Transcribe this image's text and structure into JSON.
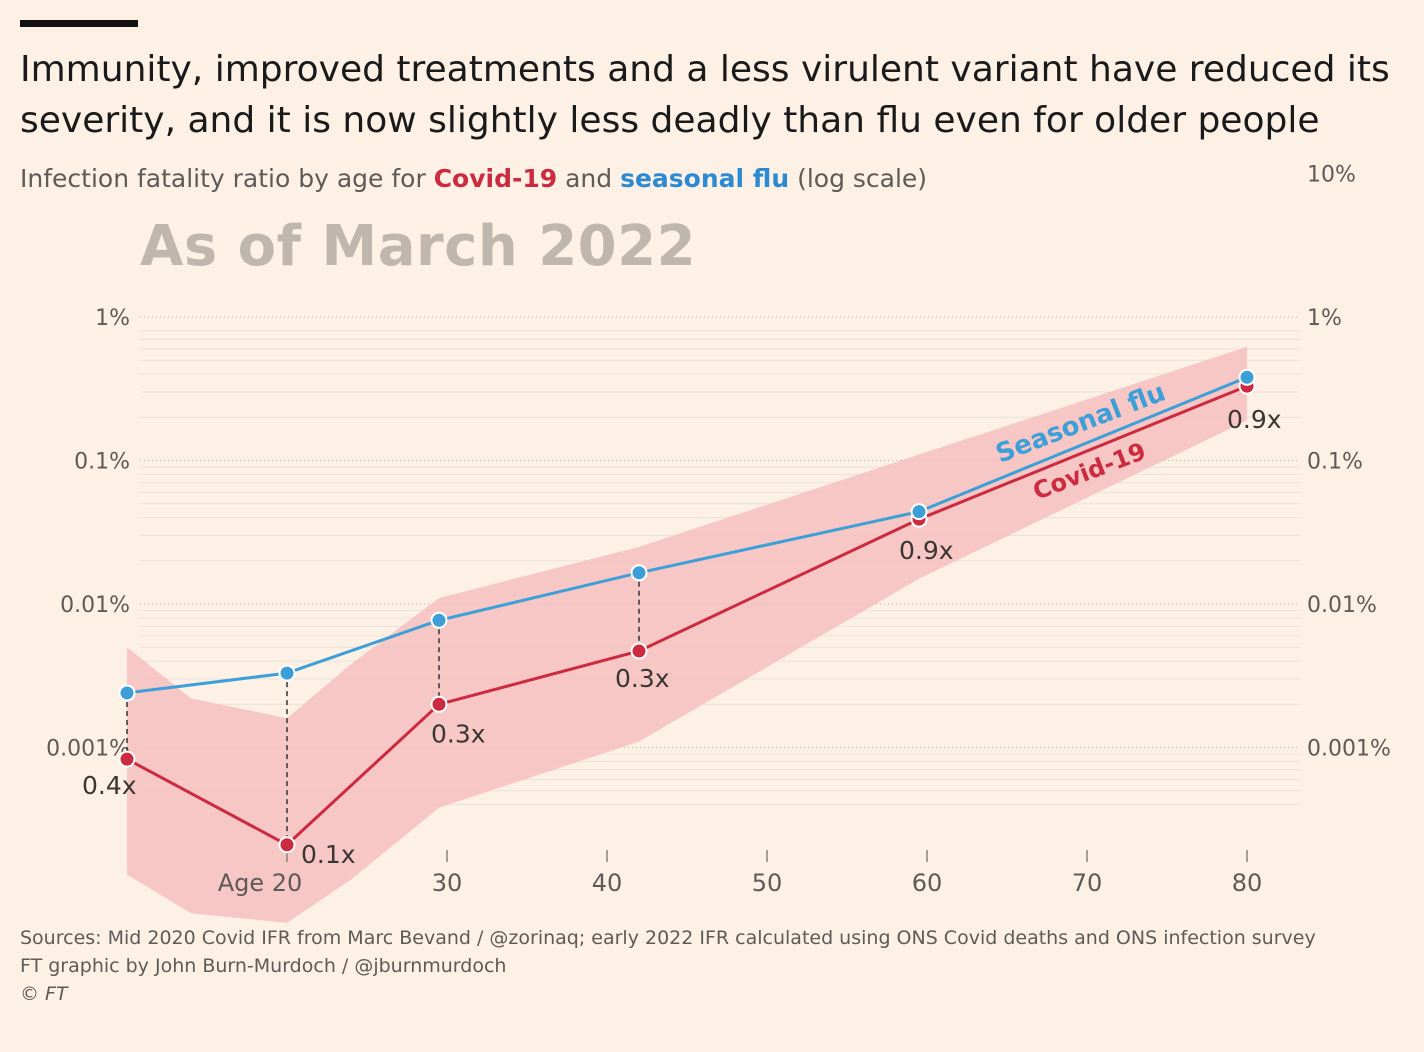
{
  "header": {
    "title": "Immunity, improved treatments and a less virulent variant have reduced its severity, and it is now slightly less deadly than flu even for older people",
    "subtitle_prefix": "Infection fatality ratio by age for ",
    "subtitle_covid": "Covid-19",
    "subtitle_and": " and ",
    "subtitle_flu": "seasonal flu",
    "subtitle_suffix": " (log scale)",
    "stamp": "As of March 2022"
  },
  "colors": {
    "covid": "#cc2a3f",
    "flu": "#3d9fd8",
    "band": "#f6bfc0",
    "grid": "#d9d2cb",
    "text": "#5e5a57"
  },
  "chart_data": {
    "type": "line",
    "y_scale": "log",
    "ylim": [
      0.0001,
      10
    ],
    "xlim": [
      2,
      82
    ],
    "y_ticks": [
      {
        "value": 1,
        "label": "1%"
      },
      {
        "value": 0.1,
        "label": "0.1%"
      },
      {
        "value": 0.01,
        "label": "0.01%"
      },
      {
        "value": 0.001,
        "label": "0.001%"
      }
    ],
    "y_ticks_right": [
      {
        "value": 10,
        "label": "10%"
      },
      {
        "value": 1,
        "label": "1%"
      },
      {
        "value": 0.1,
        "label": "0.1%"
      },
      {
        "value": 0.01,
        "label": "0.01%"
      },
      {
        "value": 0.001,
        "label": "0.001%"
      }
    ],
    "x_ticks": [
      {
        "value": 20,
        "label": "Age 20"
      },
      {
        "value": 30,
        "label": "30"
      },
      {
        "value": 40,
        "label": "40"
      },
      {
        "value": 50,
        "label": "50"
      },
      {
        "value": 60,
        "label": "60"
      },
      {
        "value": 70,
        "label": "70"
      },
      {
        "value": 80,
        "label": "80"
      }
    ],
    "series": [
      {
        "name": "Seasonal flu",
        "x": [
          10,
          20,
          29.5,
          42,
          59.5,
          80
        ],
        "values": [
          0.0024,
          0.0033,
          0.0077,
          0.0165,
          0.044,
          0.38
        ]
      },
      {
        "name": "Covid-19",
        "x": [
          10,
          20,
          29.5,
          42,
          59.5,
          80
        ],
        "values": [
          0.00083,
          0.00021,
          0.002,
          0.0047,
          0.039,
          0.33
        ]
      }
    ],
    "ratio_labels": [
      "0.4x",
      "0.1x",
      "0.3x",
      "0.3x",
      "0.9x",
      "0.9x"
    ],
    "covid_uncertainty_band": {
      "x": [
        10,
        14,
        20,
        24,
        29.5,
        42,
        59.5,
        80
      ],
      "upper": [
        0.005,
        0.0022,
        0.0016,
        0.0038,
        0.011,
        0.025,
        0.11,
        0.62
      ],
      "lower": [
        0.00013,
        7e-05,
        6e-05,
        0.00012,
        0.00038,
        0.0011,
        0.015,
        0.19
      ]
    },
    "line_labels": {
      "flu": "Seasonal flu",
      "covid": "Covid-19"
    }
  },
  "footer": {
    "sources": "Sources: Mid 2020 Covid IFR from Marc Bevand / @zorinaq; early 2022 IFR calculated using ONS Covid deaths and ONS infection survey",
    "credit": "FT graphic by John Burn-Murdoch / @jburnmurdoch",
    "copyright": "© FT"
  }
}
